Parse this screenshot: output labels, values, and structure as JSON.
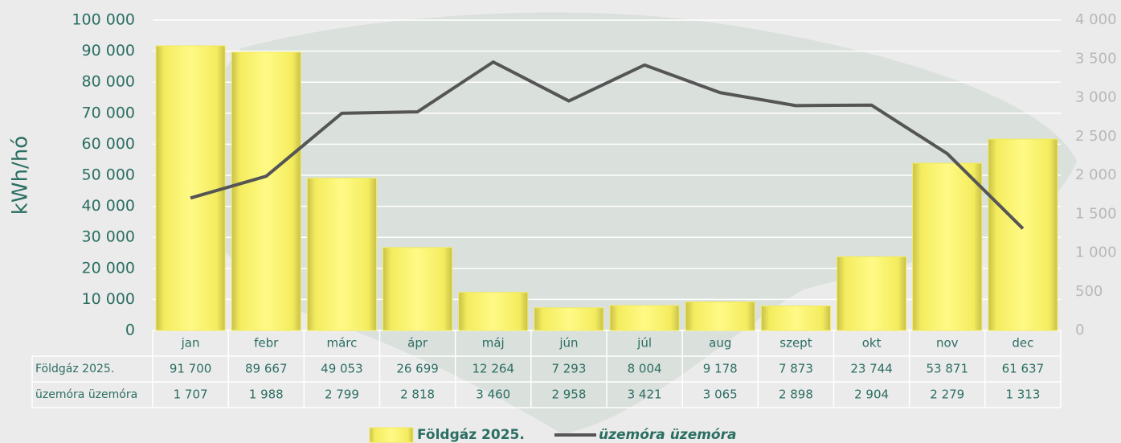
{
  "chart_data": {
    "type": "bar",
    "ylabel": "kWh/hó",
    "categories": [
      "jan",
      "febr",
      "márc",
      "ápr",
      "máj",
      "jún",
      "júl",
      "aug",
      "szept",
      "okt",
      "nov",
      "dec"
    ],
    "series": [
      {
        "name": "Földgáz 2025.",
        "type": "bar",
        "color": "#f2ea5c",
        "values": [
          91700,
          89667,
          49053,
          26699,
          12264,
          7293,
          8004,
          9178,
          7873,
          23744,
          53871,
          61637
        ],
        "value_labels": [
          "91 700",
          "89 667",
          "49 053",
          "26 699",
          "12 264",
          "7 293",
          "8 004",
          "9 178",
          "7 873",
          "23 744",
          "53 871",
          "61 637"
        ]
      },
      {
        "name": "üzemóra üzemóra",
        "type": "line",
        "axis": "y2",
        "color": "#555555",
        "values": [
          1707,
          1988,
          2799,
          2818,
          3460,
          2958,
          3421,
          3065,
          2898,
          2904,
          2279,
          1313
        ],
        "value_labels": [
          "1 707",
          "1 988",
          "2 799",
          "2 818",
          "3 460",
          "2 958",
          "3 421",
          "3 065",
          "2 898",
          "2 904",
          "2 279",
          "1 313"
        ]
      }
    ],
    "ylim": [
      0,
      100000
    ],
    "yticks": [
      0,
      {
        "value": 10000,
        "label": "10 000"
      },
      {
        "value": 20000,
        "label": "20 000"
      },
      {
        "value": 30000,
        "label": "30 000"
      },
      {
        "value": 40000,
        "label": "40 000"
      },
      {
        "value": 50000,
        "label": "50 000"
      },
      {
        "value": 60000,
        "label": "60 000"
      },
      {
        "value": 70000,
        "label": "70 000"
      },
      {
        "value": 80000,
        "label": "80 000"
      },
      {
        "value": 90000,
        "label": "90 000"
      },
      {
        "value": 100000,
        "label": "100 000"
      }
    ],
    "y2lim": [
      0,
      4000
    ],
    "y2ticks": [
      0,
      500,
      {
        "value": 1000,
        "label": "1 000"
      },
      {
        "value": 1500,
        "label": "1 500"
      },
      {
        "value": 2000,
        "label": "2 000"
      },
      {
        "value": 2500,
        "label": "2 500"
      },
      {
        "value": 3000,
        "label": "3 000"
      },
      {
        "value": 3500,
        "label": "3 500"
      },
      {
        "value": 4000,
        "label": "4 000"
      }
    ],
    "grid": true,
    "legend": "bottom"
  }
}
